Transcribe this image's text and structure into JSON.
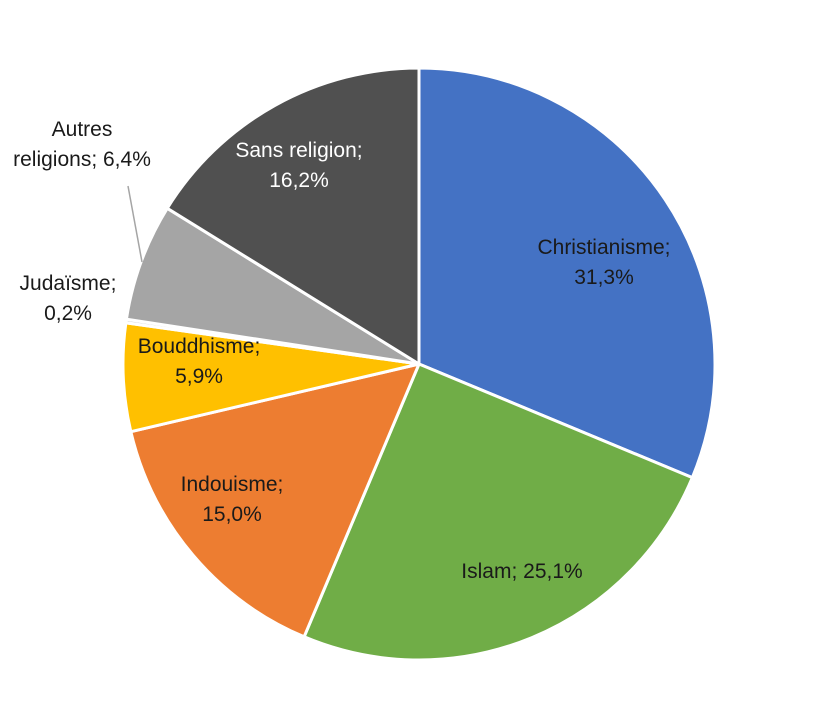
{
  "chart_data": {
    "type": "pie",
    "title": "",
    "label_separator": "; ",
    "slices": [
      {
        "name": "Christianisme",
        "value": 31.3,
        "display": "31,3%",
        "color": "#4472C4"
      },
      {
        "name": "Islam",
        "value": 25.1,
        "display": "25,1%",
        "color": "#70AD47"
      },
      {
        "name": "Indouisme",
        "value": 15.0,
        "display": "15,0%",
        "color": "#ED7D31"
      },
      {
        "name": "Bouddhisme",
        "value": 5.9,
        "display": "5,9%",
        "color": "#FFC000"
      },
      {
        "name": "Judaïsme",
        "value": 0.2,
        "display": "0,2%",
        "color": "#D9D9D9"
      },
      {
        "name": "Autres religions",
        "value": 6.4,
        "display": "6,4%",
        "color": "#A5A5A5"
      },
      {
        "name": "Sans religion",
        "value": 16.2,
        "display": "16,2%",
        "color": "#505050"
      }
    ]
  }
}
